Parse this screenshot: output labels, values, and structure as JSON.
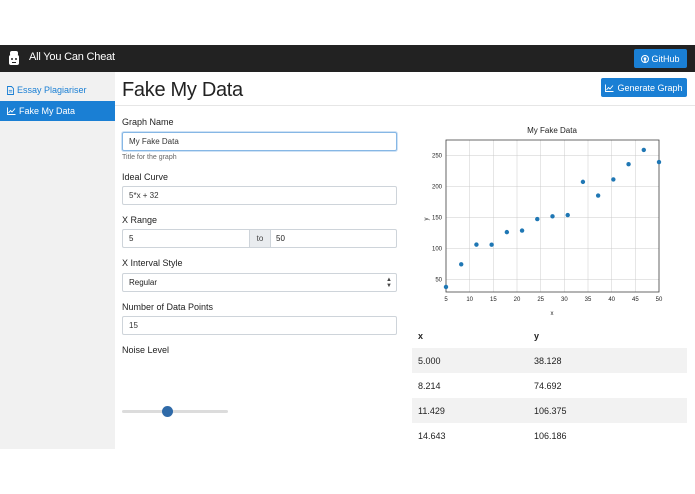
{
  "navbar": {
    "brand": "All You Can Cheat",
    "github_label": "GitHub"
  },
  "sidebar": {
    "items": [
      {
        "label": "Essay Plagiariser",
        "active": false
      },
      {
        "label": "Fake My Data",
        "active": true
      }
    ]
  },
  "main": {
    "title": "Fake My Data",
    "generate_label": "Generate Graph",
    "graph_name": {
      "label": "Graph Name",
      "value": "My Fake Data",
      "help": "Title for the graph"
    },
    "ideal_curve": {
      "label": "Ideal Curve",
      "value": "5*x + 32"
    },
    "x_range": {
      "label": "X Range",
      "from": "5",
      "to_label": "to",
      "to": "50"
    },
    "interval_style": {
      "label": "X Interval Style",
      "value": "Regular"
    },
    "num_points": {
      "label": "Number of Data Points",
      "value": "15"
    },
    "noise": {
      "label": "Noise Level",
      "value": 0.43
    }
  },
  "chart_data": {
    "type": "scatter",
    "title": "My Fake Data",
    "xlabel": "x",
    "ylabel": "y",
    "xlim": [
      5,
      50
    ],
    "ylim": [
      30,
      275
    ],
    "xticks": [
      5,
      10,
      15,
      20,
      25,
      30,
      35,
      40,
      45,
      50
    ],
    "yticks": [
      50,
      100,
      150,
      200,
      250
    ],
    "grid": true,
    "color": "#1f77b4",
    "x": [
      5.0,
      8.214,
      11.429,
      14.643,
      17.857,
      21.071,
      24.286,
      27.5,
      30.714,
      33.929,
      37.143,
      40.357,
      43.571,
      46.786,
      50.0
    ],
    "y": [
      38.128,
      74.692,
      106.375,
      106.186,
      126.5,
      129.0,
      147.5,
      152.0,
      154.0,
      207.5,
      185.5,
      211.5,
      236.0,
      259.0,
      239.5
    ]
  },
  "table": {
    "headers": [
      "x",
      "y"
    ],
    "rows": [
      [
        "5.000",
        "38.128"
      ],
      [
        "8.214",
        "74.692"
      ],
      [
        "11.429",
        "106.375"
      ],
      [
        "14.643",
        "106.186"
      ]
    ]
  },
  "colors": {
    "accent": "#1a7fd4",
    "navbar": "#222222",
    "point": "#1f77b4"
  }
}
